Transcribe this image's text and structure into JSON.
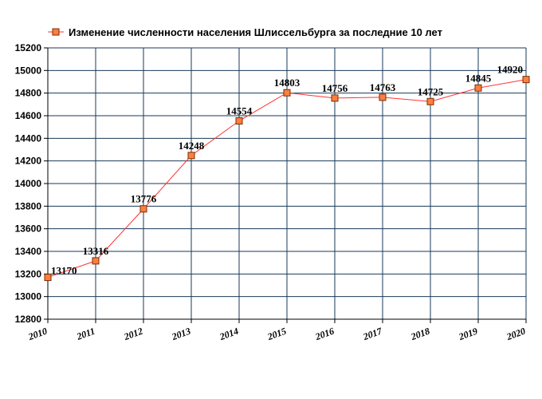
{
  "chart_data": {
    "type": "line",
    "title": "",
    "xlabel": "",
    "ylabel": "",
    "x": [
      "2010",
      "2011",
      "2012",
      "2013",
      "2014",
      "2015",
      "2016",
      "2017",
      "2018",
      "2019",
      "2020"
    ],
    "series": [
      {
        "name": "Изменение численности населения Шлиссельбурга за последние 10 лет",
        "values": [
          13170,
          13316,
          13776,
          14248,
          14554,
          14803,
          14756,
          14763,
          14725,
          14845,
          14920
        ],
        "labels": [
          "13170",
          "13316",
          "13776",
          "14248",
          "14554",
          "14803",
          "14756",
          "14763",
          "14725",
          "14845",
          "14920"
        ]
      }
    ],
    "ylim": [
      12800,
      15200
    ],
    "yticks": [
      "12800",
      "13000",
      "13200",
      "13400",
      "13600",
      "13800",
      "14000",
      "14200",
      "14400",
      "14600",
      "14800",
      "15000",
      "15200"
    ],
    "grid": true,
    "legend_position": "top",
    "colors": {
      "line": "#ff3333",
      "marker_fill": "#ff7f3f",
      "marker_stroke": "#7a2e00",
      "grid": "#1a3a5a",
      "axis": "#000000"
    }
  }
}
